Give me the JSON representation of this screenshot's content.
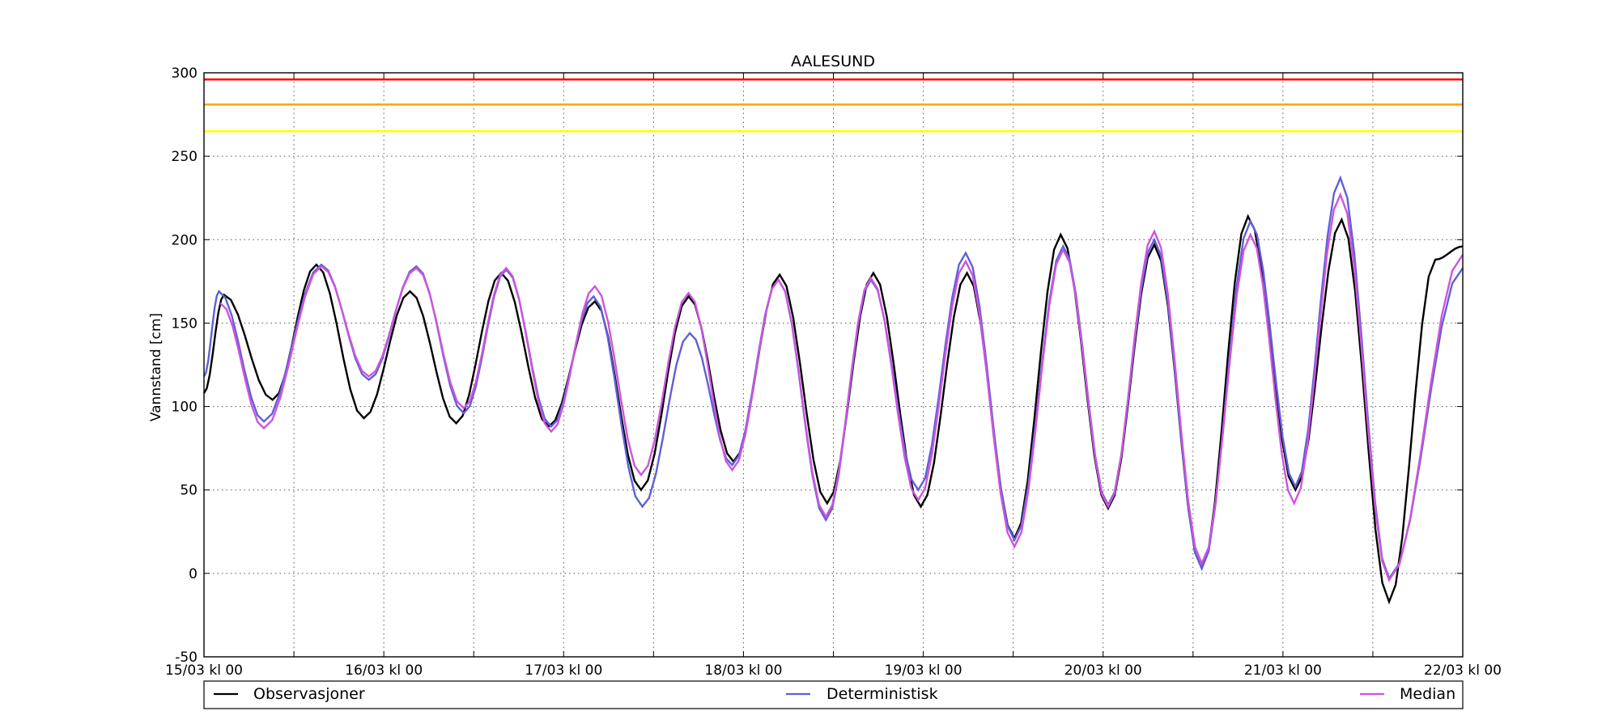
{
  "chart_data": {
    "type": "line",
    "title": "AALESUND",
    "xlabel": "",
    "ylabel": "Vannstand [cm]",
    "xlim": [
      "2024-03-15T00:00",
      "2024-03-22T00:00"
    ],
    "ylim": [
      -50,
      300
    ],
    "yticks": [
      -50,
      0,
      50,
      100,
      150,
      200,
      250,
      300
    ],
    "xtick_labels": [
      "15/03 kl 00",
      "16/03 kl 00",
      "17/03 kl 00",
      "18/03 kl 00",
      "19/03 kl 00",
      "20/03 kl 00",
      "21/03 kl 00",
      "22/03 kl 00"
    ],
    "xticks": [
      "2024-03-15T00:00",
      "2024-03-16T00:00",
      "2024-03-17T00:00",
      "2024-03-18T00:00",
      "2024-03-19T00:00",
      "2024-03-20T00:00",
      "2024-03-21T00:00",
      "2024-03-22T00:00"
    ],
    "grid": true,
    "legend_placement": "bottom",
    "hlines": [
      {
        "y": 296,
        "color": "#ff0000"
      },
      {
        "y": 281,
        "color": "#ffa500"
      },
      {
        "y": 265,
        "color": "#ffff00"
      }
    ],
    "series": [
      {
        "name": "Observasjoner",
        "color": "#000000",
        "extrema": [
          {
            "x": "2024-03-15T00:00",
            "y": 108
          },
          {
            "x": "2024-03-15T02:40",
            "y": 167
          },
          {
            "x": "2024-03-15T09:10",
            "y": 104
          },
          {
            "x": "2024-03-15T15:00",
            "y": 185
          },
          {
            "x": "2024-03-15T21:20",
            "y": 93
          },
          {
            "x": "2024-03-16T03:30",
            "y": 169
          },
          {
            "x": "2024-03-16T09:40",
            "y": 90
          },
          {
            "x": "2024-03-16T15:40",
            "y": 180
          },
          {
            "x": "2024-03-16T22:00",
            "y": 88
          },
          {
            "x": "2024-03-17T04:10",
            "y": 163
          },
          {
            "x": "2024-03-17T10:20",
            "y": 50
          },
          {
            "x": "2024-03-17T16:40",
            "y": 166
          },
          {
            "x": "2024-03-17T22:40",
            "y": 67
          },
          {
            "x": "2024-03-18T04:50",
            "y": 179
          },
          {
            "x": "2024-03-18T11:10",
            "y": 42
          },
          {
            "x": "2024-03-18T17:20",
            "y": 180
          },
          {
            "x": "2024-03-18T23:40",
            "y": 40
          },
          {
            "x": "2024-03-19T05:50",
            "y": 180
          },
          {
            "x": "2024-03-19T12:10",
            "y": 21
          },
          {
            "x": "2024-03-19T18:20",
            "y": 203
          },
          {
            "x": "2024-03-20T00:40",
            "y": 39
          },
          {
            "x": "2024-03-20T06:50",
            "y": 197
          },
          {
            "x": "2024-03-20T13:10",
            "y": 3
          },
          {
            "x": "2024-03-20T19:20",
            "y": 214
          },
          {
            "x": "2024-03-21T01:40",
            "y": 50
          },
          {
            "x": "2024-03-21T07:50",
            "y": 212
          },
          {
            "x": "2024-03-21T14:10",
            "y": -17
          },
          {
            "x": "2024-03-21T20:20",
            "y": 188
          },
          {
            "x": "2024-03-22T00:00",
            "y": 196
          }
        ]
      },
      {
        "name": "Deterministisk",
        "color": "#5f5fd8",
        "extrema": [
          {
            "x": "2024-03-15T00:00",
            "y": 118
          },
          {
            "x": "2024-03-15T02:00",
            "y": 169
          },
          {
            "x": "2024-03-15T08:00",
            "y": 91
          },
          {
            "x": "2024-03-15T15:40",
            "y": 185
          },
          {
            "x": "2024-03-15T22:00",
            "y": 116
          },
          {
            "x": "2024-03-16T04:20",
            "y": 184
          },
          {
            "x": "2024-03-16T10:40",
            "y": 96
          },
          {
            "x": "2024-03-16T16:20",
            "y": 182
          },
          {
            "x": "2024-03-16T22:20",
            "y": 88
          },
          {
            "x": "2024-03-17T04:00",
            "y": 166
          },
          {
            "x": "2024-03-17T10:30",
            "y": 40
          },
          {
            "x": "2024-03-17T16:50",
            "y": 144
          },
          {
            "x": "2024-03-17T22:30",
            "y": 65
          },
          {
            "x": "2024-03-18T04:40",
            "y": 176
          },
          {
            "x": "2024-03-18T11:00",
            "y": 32
          },
          {
            "x": "2024-03-18T17:00",
            "y": 176
          },
          {
            "x": "2024-03-18T23:20",
            "y": 50
          },
          {
            "x": "2024-03-19T05:40",
            "y": 192
          },
          {
            "x": "2024-03-19T12:10",
            "y": 20
          },
          {
            "x": "2024-03-19T18:40",
            "y": 196
          },
          {
            "x": "2024-03-20T00:40",
            "y": 41
          },
          {
            "x": "2024-03-20T06:50",
            "y": 200
          },
          {
            "x": "2024-03-20T13:10",
            "y": 3
          },
          {
            "x": "2024-03-20T19:40",
            "y": 211
          },
          {
            "x": "2024-03-21T01:40",
            "y": 52
          },
          {
            "x": "2024-03-21T07:40",
            "y": 237
          },
          {
            "x": "2024-03-21T14:10",
            "y": -3
          },
          {
            "x": "2024-03-22T00:00",
            "y": 183
          }
        ]
      },
      {
        "name": "Median",
        "color": "#cc55dd",
        "extrema": [
          {
            "x": "2024-03-15T02:10",
            "y": 162
          },
          {
            "x": "2024-03-15T08:00",
            "y": 87
          },
          {
            "x": "2024-03-15T15:40",
            "y": 184
          },
          {
            "x": "2024-03-15T22:00",
            "y": 118
          },
          {
            "x": "2024-03-16T04:20",
            "y": 183
          },
          {
            "x": "2024-03-16T10:40",
            "y": 99
          },
          {
            "x": "2024-03-16T16:20",
            "y": 183
          },
          {
            "x": "2024-03-16T22:20",
            "y": 85
          },
          {
            "x": "2024-03-17T04:10",
            "y": 172
          },
          {
            "x": "2024-03-17T10:20",
            "y": 59
          },
          {
            "x": "2024-03-17T16:40",
            "y": 168
          },
          {
            "x": "2024-03-17T22:30",
            "y": 62
          },
          {
            "x": "2024-03-18T04:40",
            "y": 176
          },
          {
            "x": "2024-03-18T11:00",
            "y": 34
          },
          {
            "x": "2024-03-18T17:00",
            "y": 177
          },
          {
            "x": "2024-03-18T23:20",
            "y": 44
          },
          {
            "x": "2024-03-19T05:40",
            "y": 187
          },
          {
            "x": "2024-03-19T12:10",
            "y": 16
          },
          {
            "x": "2024-03-19T18:40",
            "y": 194
          },
          {
            "x": "2024-03-20T00:40",
            "y": 40
          },
          {
            "x": "2024-03-20T06:50",
            "y": 205
          },
          {
            "x": "2024-03-20T13:10",
            "y": 6
          },
          {
            "x": "2024-03-20T19:40",
            "y": 203
          },
          {
            "x": "2024-03-21T01:30",
            "y": 42
          },
          {
            "x": "2024-03-21T07:40",
            "y": 227
          },
          {
            "x": "2024-03-21T14:10",
            "y": -4
          },
          {
            "x": "2024-03-22T00:00",
            "y": 191
          }
        ]
      }
    ]
  }
}
